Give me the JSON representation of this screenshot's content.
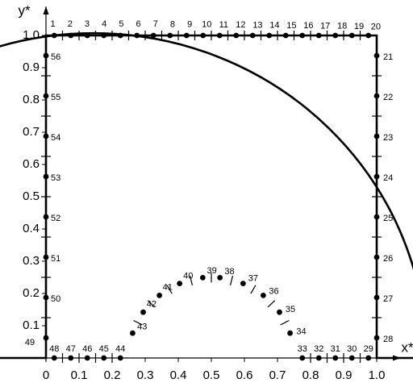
{
  "chart_data": {
    "type": "scatter",
    "xlabel": "x*",
    "ylabel": "y*",
    "xlim": [
      0,
      1
    ],
    "ylim": [
      0,
      1
    ],
    "xticks": [
      0,
      0.1,
      0.2,
      0.3,
      0.4,
      0.5,
      0.6,
      0.7,
      0.8,
      0.9,
      {
        "value": 1,
        "label": "1.0"
      }
    ],
    "yticks": [
      0.1,
      0.2,
      0.3,
      0.4,
      0.5,
      0.6,
      0.7,
      0.8,
      0.9,
      {
        "value": 1,
        "label": "1.0"
      }
    ],
    "color": "#000000",
    "x": [
      0.025,
      0.075,
      0.125,
      0.175,
      0.225,
      0.275,
      0.325,
      0.375,
      0.425,
      0.475,
      0.525,
      0.575,
      0.625,
      0.675,
      0.725,
      0.775,
      0.825,
      0.875,
      0.925,
      0.975,
      1,
      1,
      1,
      1,
      1,
      1,
      1,
      1,
      0.975,
      0.925,
      0.875,
      0.825,
      0.775,
      0.738,
      0.706,
      0.657,
      0.596,
      0.526,
      0.474,
      0.404,
      0.343,
      0.294,
      0.262,
      0.225,
      0.175,
      0.125,
      0.075,
      0.025,
      0,
      0,
      0,
      0,
      0,
      0,
      0,
      0
    ],
    "values": [
      1,
      1,
      1,
      1,
      1,
      1,
      1,
      1,
      1,
      1,
      1,
      1,
      1,
      1,
      1,
      1,
      1,
      1,
      1,
      1,
      0.9375,
      0.8125,
      0.6875,
      0.5625,
      0.4375,
      0.3125,
      0.1875,
      0.0625,
      0,
      0,
      0,
      0,
      0,
      0.077,
      0.142,
      0.194,
      0.231,
      0.249,
      0.249,
      0.231,
      0.194,
      0.142,
      0.077,
      0,
      0,
      0,
      0,
      0,
      0.0625,
      0.1875,
      0.3125,
      0.4375,
      0.5625,
      0.6875,
      0.8125,
      0.9375
    ],
    "point_labels": [
      "1",
      "2",
      "3",
      "4",
      "5",
      "6",
      "7",
      "8",
      "9",
      "10",
      "11",
      "12",
      "13",
      "14",
      "15",
      "16",
      "17",
      "18",
      "19",
      "20",
      "21",
      "22",
      "23",
      "24",
      "25",
      "26",
      "27",
      "28",
      "29",
      "30",
      "31",
      "32",
      "33",
      "34",
      "35",
      "36",
      "37",
      "38",
      "39",
      "40",
      "41",
      "42",
      "43",
      "44",
      "45",
      "46",
      "47",
      "48",
      "49",
      "50",
      "51",
      "52",
      "53",
      "54",
      "55",
      "56"
    ]
  }
}
